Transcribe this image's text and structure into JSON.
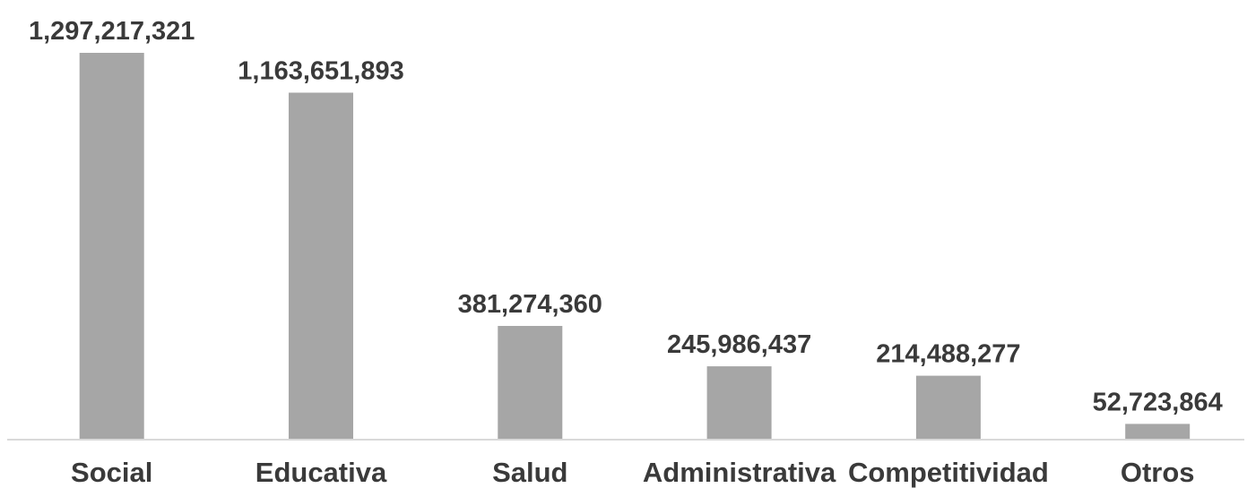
{
  "chart_data": {
    "type": "bar",
    "categories": [
      "Social",
      "Educativa",
      "Salud",
      "Administrativa",
      "Competitividad",
      "Otros"
    ],
    "values": [
      1297217321,
      1163651893,
      381274360,
      245986437,
      214488277,
      52723864
    ],
    "value_labels": [
      "1,297,217,321",
      "1,163,651,893",
      "381,274,360",
      "245,986,437",
      "214,488,277",
      "52,723,864"
    ],
    "title": "",
    "xlabel": "",
    "ylabel": "",
    "ylim": [
      0,
      1297217321
    ],
    "grid": false,
    "legend": "none",
    "bar_color": "#a6a6a6",
    "axis_color": "#d9d9d9",
    "text_color": "#3a3a3a"
  }
}
